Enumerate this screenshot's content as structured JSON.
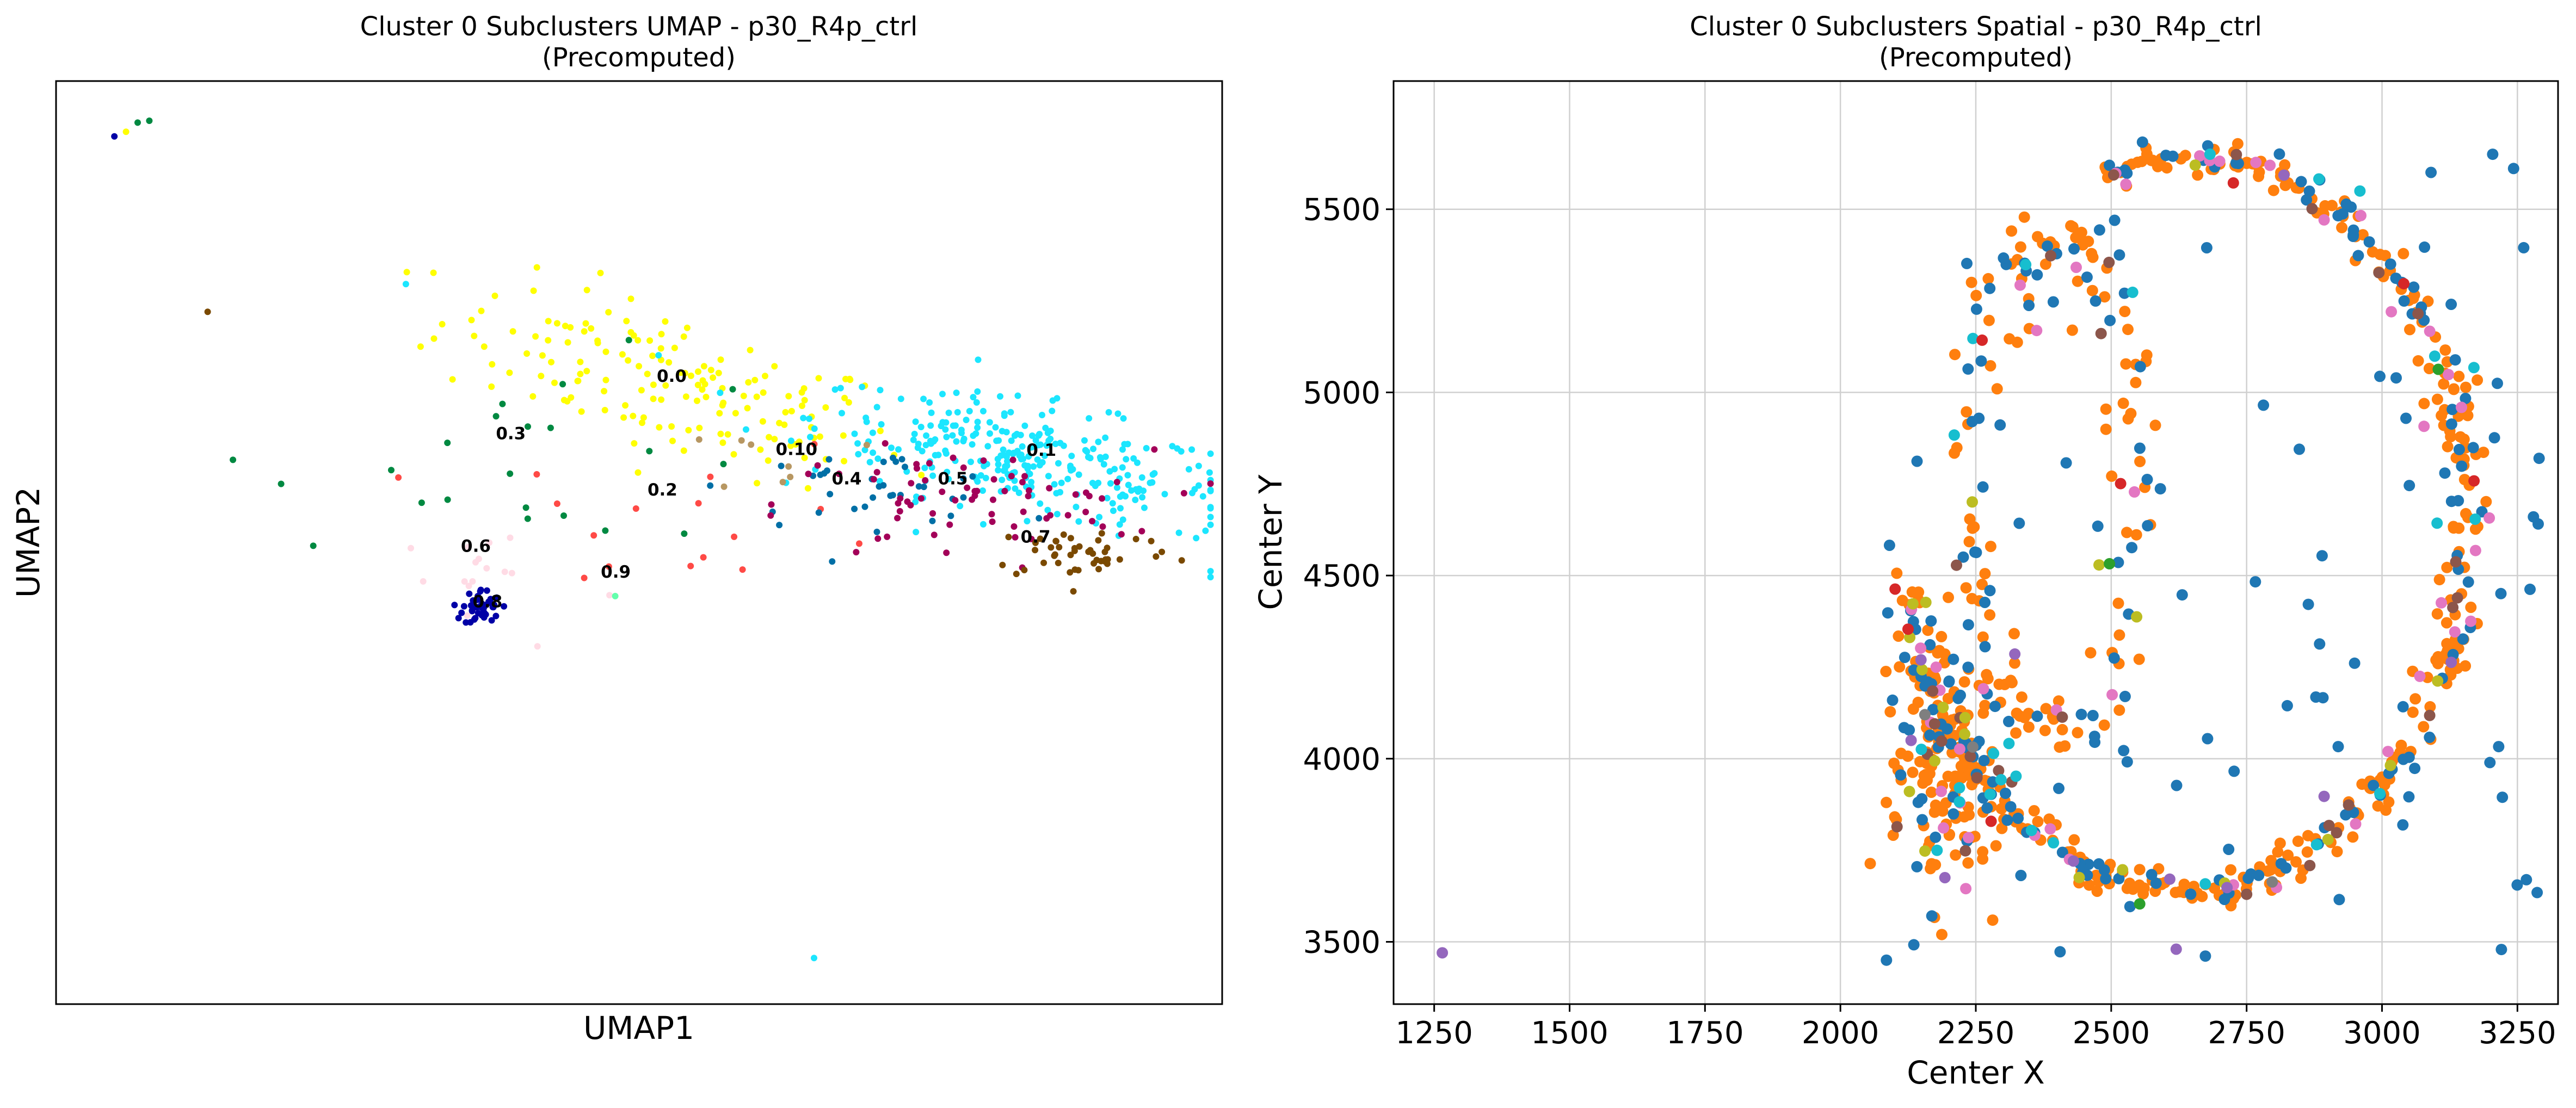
{
  "chart_data": [
    {
      "type": "scatter",
      "title": "Cluster 0 Subclusters UMAP - p30_R4p_ctrl",
      "subtitle": "(Precomputed)",
      "xlabel": "UMAP1",
      "ylabel": "UMAP2",
      "xlim": [
        0,
        100
      ],
      "ylim": [
        0,
        100
      ],
      "ticks_shown": false,
      "grid": false,
      "clusters": [
        {
          "name": "0.0",
          "color": "#ffff00",
          "center": [
            53,
            67
          ],
          "spread": [
            10,
            4
          ],
          "count": 160
        },
        {
          "name": "0.1",
          "color": "#1ce6ff",
          "center": [
            83,
            59
          ],
          "spread": [
            9,
            3
          ],
          "count": 300
        },
        {
          "name": "0.2",
          "color": "#ff4a46",
          "center": [
            55,
            53
          ],
          "spread": [
            9,
            4
          ],
          "count": 16
        },
        {
          "name": "0.3",
          "color": "#008941",
          "center": [
            42,
            60
          ],
          "spread": [
            12,
            5
          ],
          "count": 22
        },
        {
          "name": "0.4",
          "color": "#006fa6",
          "center": [
            70,
            56
          ],
          "spread": [
            6,
            2
          ],
          "count": 36
        },
        {
          "name": "0.5",
          "color": "#a30059",
          "center": [
            78,
            54
          ],
          "spread": [
            8,
            3
          ],
          "count": 70
        },
        {
          "name": "0.6",
          "color": "#ffdbe5",
          "center": [
            37,
            46
          ],
          "spread": [
            6,
            4
          ],
          "count": 16
        },
        {
          "name": "0.7",
          "color": "#7a4900",
          "center": [
            88,
            49
          ],
          "spread": [
            4,
            1.5
          ],
          "count": 46
        },
        {
          "name": "0.8",
          "color": "#0000a6",
          "center": [
            36.5,
            43
          ],
          "spread": [
            0.8,
            1.0
          ],
          "count": 44
        },
        {
          "name": "0.9",
          "color": "#63ffac",
          "center": [
            48,
            44
          ],
          "spread": [
            0.5,
            0.5
          ],
          "count": 1
        },
        {
          "name": "0.10",
          "color": "#b79762",
          "center": [
            63,
            59
          ],
          "spread": [
            3,
            2
          ],
          "count": 8
        }
      ],
      "cluster_labels": [
        {
          "text": "0.0",
          "x": 52.8,
          "y": 67.4
        },
        {
          "text": "0.1",
          "x": 84.5,
          "y": 59.4
        },
        {
          "text": "0.2",
          "x": 52.0,
          "y": 55.1
        },
        {
          "text": "0.3",
          "x": 39.0,
          "y": 61.2
        },
        {
          "text": "0.4",
          "x": 67.8,
          "y": 56.3
        },
        {
          "text": "0.5",
          "x": 76.9,
          "y": 56.3
        },
        {
          "text": "0.6",
          "x": 36.0,
          "y": 49.0
        },
        {
          "text": "0.7",
          "x": 84.0,
          "y": 50.0
        },
        {
          "text": "0.8",
          "x": 37.0,
          "y": 43.0
        },
        {
          "text": "0.9",
          "x": 48.0,
          "y": 46.2
        },
        {
          "text": "0.10",
          "x": 63.5,
          "y": 59.5
        }
      ]
    },
    {
      "type": "scatter",
      "title": "Cluster 0 Subclusters Spatial - p30_R4p_ctrl",
      "subtitle": "(Precomputed)",
      "xlabel": "Center X",
      "ylabel": "Center Y",
      "xlim": [
        1175,
        3325
      ],
      "ylim": [
        3330,
        5850
      ],
      "xticks": [
        1250,
        1500,
        1750,
        2000,
        2250,
        2500,
        2750,
        3000,
        3250
      ],
      "yticks": [
        3500,
        4000,
        4500,
        5000,
        5500
      ],
      "grid": true,
      "series": [
        {
          "color": "#ff7f0e",
          "count": 520
        },
        {
          "color": "#1f77b4",
          "count": 250
        },
        {
          "color": "#e377c2",
          "count": 45
        },
        {
          "color": "#8c564b",
          "count": 30
        },
        {
          "color": "#17becf",
          "count": 25
        },
        {
          "color": "#bcbd22",
          "count": 20
        },
        {
          "color": "#9467bd",
          "count": 10
        },
        {
          "color": "#d62728",
          "count": 8
        },
        {
          "color": "#2ca02c",
          "count": 3
        },
        {
          "color": "#7f7f7f",
          "count": 3
        }
      ]
    }
  ]
}
